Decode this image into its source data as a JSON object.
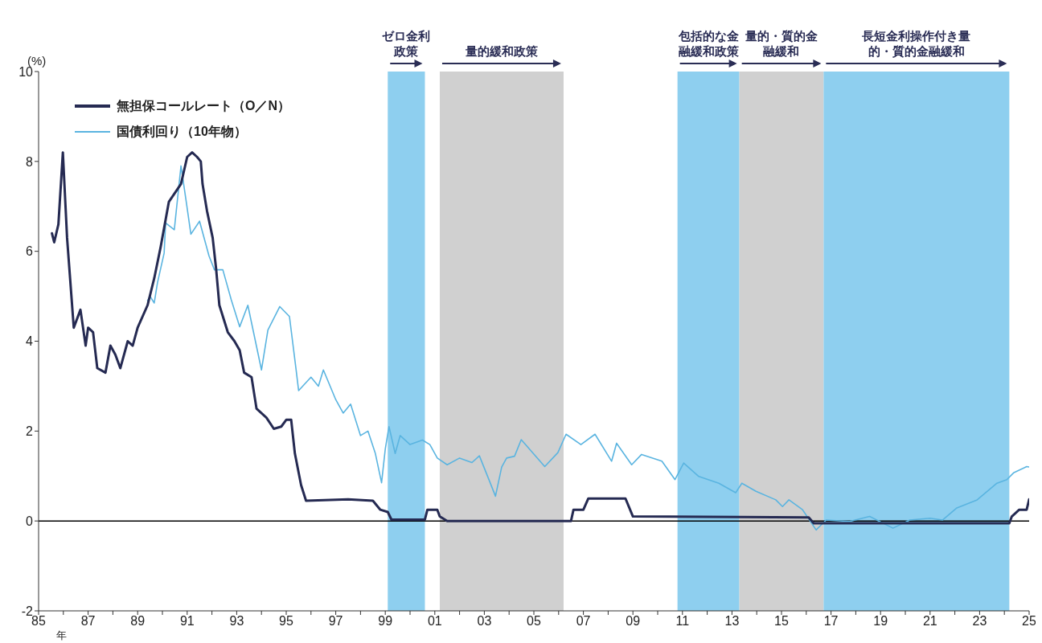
{
  "chart_data": {
    "type": "line",
    "ylabel": "(%)",
    "xlabel": "年",
    "xlim": [
      1985,
      2025
    ],
    "xticks": [
      {
        "value": 1985,
        "label": "85"
      },
      {
        "value": 1986,
        "label": null
      },
      {
        "value": 1987,
        "label": "87"
      },
      {
        "value": 1988,
        "label": null
      },
      {
        "value": 1989,
        "label": "89"
      },
      {
        "value": 1990,
        "label": null
      },
      {
        "value": 1991,
        "label": "91"
      },
      {
        "value": 1992,
        "label": null
      },
      {
        "value": 1993,
        "label": "93"
      },
      {
        "value": 1994,
        "label": null
      },
      {
        "value": 1995,
        "label": "95"
      },
      {
        "value": 1996,
        "label": null
      },
      {
        "value": 1997,
        "label": "97"
      },
      {
        "value": 1998,
        "label": null
      },
      {
        "value": 1999,
        "label": "99"
      },
      {
        "value": 2000,
        "label": null
      },
      {
        "value": 2001,
        "label": "01"
      },
      {
        "value": 2002,
        "label": null
      },
      {
        "value": 2003,
        "label": "03"
      },
      {
        "value": 2004,
        "label": null
      },
      {
        "value": 2005,
        "label": "05"
      },
      {
        "value": 2006,
        "label": null
      },
      {
        "value": 2007,
        "label": "07"
      },
      {
        "value": 2008,
        "label": null
      },
      {
        "value": 2009,
        "label": "09"
      },
      {
        "value": 2010,
        "label": null
      },
      {
        "value": 2011,
        "label": "11"
      },
      {
        "value": 2012,
        "label": null
      },
      {
        "value": 2013,
        "label": "13"
      },
      {
        "value": 2014,
        "label": null
      },
      {
        "value": 2015,
        "label": "15"
      },
      {
        "value": 2016,
        "label": null
      },
      {
        "value": 2017,
        "label": "17"
      },
      {
        "value": 2018,
        "label": null
      },
      {
        "value": 2019,
        "label": "19"
      },
      {
        "value": 2020,
        "label": null
      },
      {
        "value": 2021,
        "label": "21"
      },
      {
        "value": 2022,
        "label": null
      },
      {
        "value": 2023,
        "label": "23"
      },
      {
        "value": 2024,
        "label": null
      },
      {
        "value": 2025,
        "label": "25"
      }
    ],
    "ylim": [
      -2,
      10
    ],
    "yticks": [
      -2,
      0,
      2,
      4,
      6,
      8,
      10
    ],
    "grid": false,
    "legend": "top left",
    "line_style": "solid",
    "marker": "none",
    "series": [
      {
        "name": "無担保コールレート（O／N）",
        "color": "#252a52",
        "x": [
          1985.54,
          1985.63,
          1985.8,
          1985.98,
          1986.15,
          1986.42,
          1986.69,
          1986.9,
          1987.0,
          1987.2,
          1987.37,
          1987.7,
          1987.9,
          1988.1,
          1988.3,
          1988.6,
          1988.8,
          1989.0,
          1989.4,
          1989.67,
          1989.93,
          1990.26,
          1990.75,
          1991.0,
          1991.2,
          1991.4,
          1991.55,
          1991.62,
          1991.8,
          1992.03,
          1992.17,
          1992.3,
          1992.64,
          1992.91,
          1993.12,
          1993.3,
          1993.6,
          1993.8,
          1994.2,
          1994.5,
          1994.8,
          1995.0,
          1995.2,
          1995.35,
          1995.6,
          1995.8,
          1997.5,
          1998.5,
          1998.8,
          1999.1,
          1999.25,
          2000.6,
          2000.7,
          2001.1,
          2001.2,
          2001.5,
          2006.5,
          2006.6,
          2007.0,
          2007.2,
          2008.7,
          2009.0,
          2016.1,
          2016.3,
          2024.2,
          2024.3,
          2024.6,
          2024.9,
          2025.0
        ],
        "values": [
          6.4,
          6.2,
          6.6,
          8.2,
          6.3,
          4.3,
          4.7,
          3.9,
          4.3,
          4.2,
          3.4,
          3.3,
          3.9,
          3.7,
          3.4,
          4.0,
          3.9,
          4.3,
          4.8,
          5.4,
          6.1,
          7.1,
          7.5,
          8.1,
          8.2,
          8.1,
          8.0,
          7.5,
          6.9,
          6.3,
          5.6,
          4.8,
          4.2,
          4.0,
          3.8,
          3.3,
          3.2,
          2.5,
          2.3,
          2.05,
          2.1,
          2.25,
          2.25,
          1.5,
          0.8,
          0.45,
          0.48,
          0.45,
          0.25,
          0.2,
          0.03,
          0.03,
          0.25,
          0.25,
          0.1,
          0.0,
          0.0,
          0.25,
          0.25,
          0.5,
          0.5,
          0.1,
          0.08,
          -0.05,
          -0.05,
          0.1,
          0.25,
          0.25,
          0.48
        ]
      },
      {
        "name": "国債利回り（10年物）",
        "color": "#5ab4e0",
        "x": [
          1989.4,
          1989.5,
          1989.67,
          1989.8,
          1990.07,
          1990.13,
          1990.48,
          1990.75,
          1990.95,
          1991.15,
          1991.5,
          1991.88,
          1992.1,
          1992.44,
          1992.78,
          1993.12,
          1993.45,
          1994.0,
          1994.26,
          1994.74,
          1995.13,
          1995.4,
          1995.5,
          1996.0,
          1996.3,
          1996.5,
          1997.0,
          1997.3,
          1997.6,
          1998.0,
          1998.3,
          1998.6,
          1998.85,
          1999.0,
          1999.15,
          1999.4,
          1999.6,
          2000.0,
          2000.5,
          2000.8,
          2001.1,
          2001.5,
          2002.0,
          2002.5,
          2002.8,
          2003.2,
          2003.45,
          2003.7,
          2003.9,
          2004.22,
          2004.49,
          2005.44,
          2005.97,
          2006.3,
          2006.9,
          2007.47,
          2008.14,
          2008.34,
          2008.95,
          2009.35,
          2010.17,
          2010.7,
          2011.05,
          2011.66,
          2012.47,
          2013.15,
          2013.4,
          2013.97,
          2014.77,
          2015.04,
          2015.3,
          2015.85,
          2016.4,
          2016.8,
          2017.75,
          2018.56,
          2019.5,
          2020.18,
          2021.0,
          2021.5,
          2022.08,
          2022.9,
          2023.7,
          2024.1,
          2024.37,
          2024.9,
          2025.0
        ],
        "values": [
          4.9,
          5.0,
          4.85,
          5.3,
          5.96,
          6.63,
          6.48,
          7.9,
          7.15,
          6.38,
          6.67,
          5.9,
          5.59,
          5.59,
          4.92,
          4.32,
          4.8,
          3.36,
          4.25,
          4.77,
          4.55,
          3.36,
          2.9,
          3.2,
          3.0,
          3.36,
          2.7,
          2.4,
          2.6,
          1.9,
          2.0,
          1.5,
          0.85,
          1.6,
          2.1,
          1.5,
          1.9,
          1.7,
          1.8,
          1.7,
          1.4,
          1.25,
          1.4,
          1.3,
          1.45,
          0.9,
          0.55,
          1.2,
          1.4,
          1.44,
          1.81,
          1.21,
          1.52,
          1.93,
          1.7,
          1.93,
          1.33,
          1.73,
          1.25,
          1.48,
          1.33,
          0.92,
          1.29,
          0.99,
          0.84,
          0.63,
          0.84,
          0.66,
          0.47,
          0.32,
          0.47,
          0.25,
          -0.2,
          0.02,
          -0.01,
          0.1,
          -0.16,
          0.02,
          0.06,
          0.02,
          0.29,
          0.47,
          0.84,
          0.92,
          1.07,
          1.21,
          1.2
        ]
      }
    ],
    "ref_lines": [
      {
        "axis": "y",
        "value": 0,
        "color": "#000000"
      }
    ],
    "bands": [
      {
        "axis": "x",
        "from": 1999.1,
        "to": 2000.6,
        "label": "ゼロ金利政策",
        "color": "#8ecfef"
      },
      {
        "axis": "x",
        "from": 2001.2,
        "to": 2006.2,
        "label": "量的緩和政策",
        "color": "#d0d0d0"
      },
      {
        "axis": "x",
        "from": 2010.8,
        "to": 2013.3,
        "label": "包括的な金融緩和政策",
        "color": "#8ecfef"
      },
      {
        "axis": "x",
        "from": 2013.3,
        "to": 2016.7,
        "label": "量的・質的金融緩和",
        "color": "#d0d0d0"
      },
      {
        "axis": "x",
        "from": 2016.7,
        "to": 2024.2,
        "label": "長短金利操作付き量的・質的金融緩和",
        "color": "#8ecfef"
      }
    ]
  }
}
